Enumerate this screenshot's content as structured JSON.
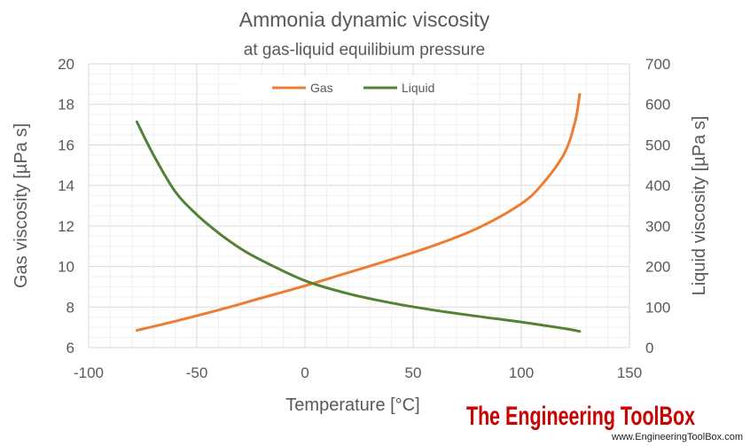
{
  "chart_data": {
    "type": "line",
    "title": "Ammonia dynamic viscosity",
    "subtitle": "at gas-liquid equilibium pressure",
    "xlabel": "Temperature [°C]",
    "ylabel": "Gas viscosity [µPa s]",
    "y2label": "Liquid viscosity [µPa s]",
    "xlim": [
      -100,
      150
    ],
    "ylim": [
      6,
      20
    ],
    "y2lim": [
      0,
      700
    ],
    "xticks": [
      "-100",
      "-50",
      "0",
      "50",
      "100",
      "150"
    ],
    "yticks": [
      "6",
      "8",
      "10",
      "12",
      "14",
      "16",
      "18",
      "20"
    ],
    "y2ticks": [
      "0",
      "100",
      "200",
      "300",
      "400",
      "500",
      "600",
      "700"
    ],
    "grid": true,
    "legend_position": "top-center",
    "series": [
      {
        "name": "Gas",
        "axis": "left",
        "color": "#ED7D31",
        "x": [
          -77.7,
          -60,
          -40,
          -20,
          0,
          20,
          40,
          60,
          80,
          100,
          110,
          120,
          125,
          127
        ],
        "y": [
          6.85,
          7.3,
          7.85,
          8.45,
          9.05,
          9.7,
          10.35,
          11.05,
          11.9,
          13.1,
          14.1,
          15.6,
          17.2,
          18.5
        ]
      },
      {
        "name": "Liquid",
        "axis": "right",
        "color": "#548235",
        "x": [
          -77.7,
          -70,
          -60,
          -50,
          -40,
          -30,
          -20,
          0,
          20,
          40,
          60,
          80,
          100,
          120,
          127
        ],
        "y": [
          557,
          475,
          385,
          328,
          283,
          245,
          215,
          165,
          133,
          110,
          92,
          77,
          63,
          47,
          40
        ]
      }
    ]
  },
  "brand": {
    "name": "The Engineering ToolBox",
    "url": "www.EngineeringToolBox.com"
  }
}
